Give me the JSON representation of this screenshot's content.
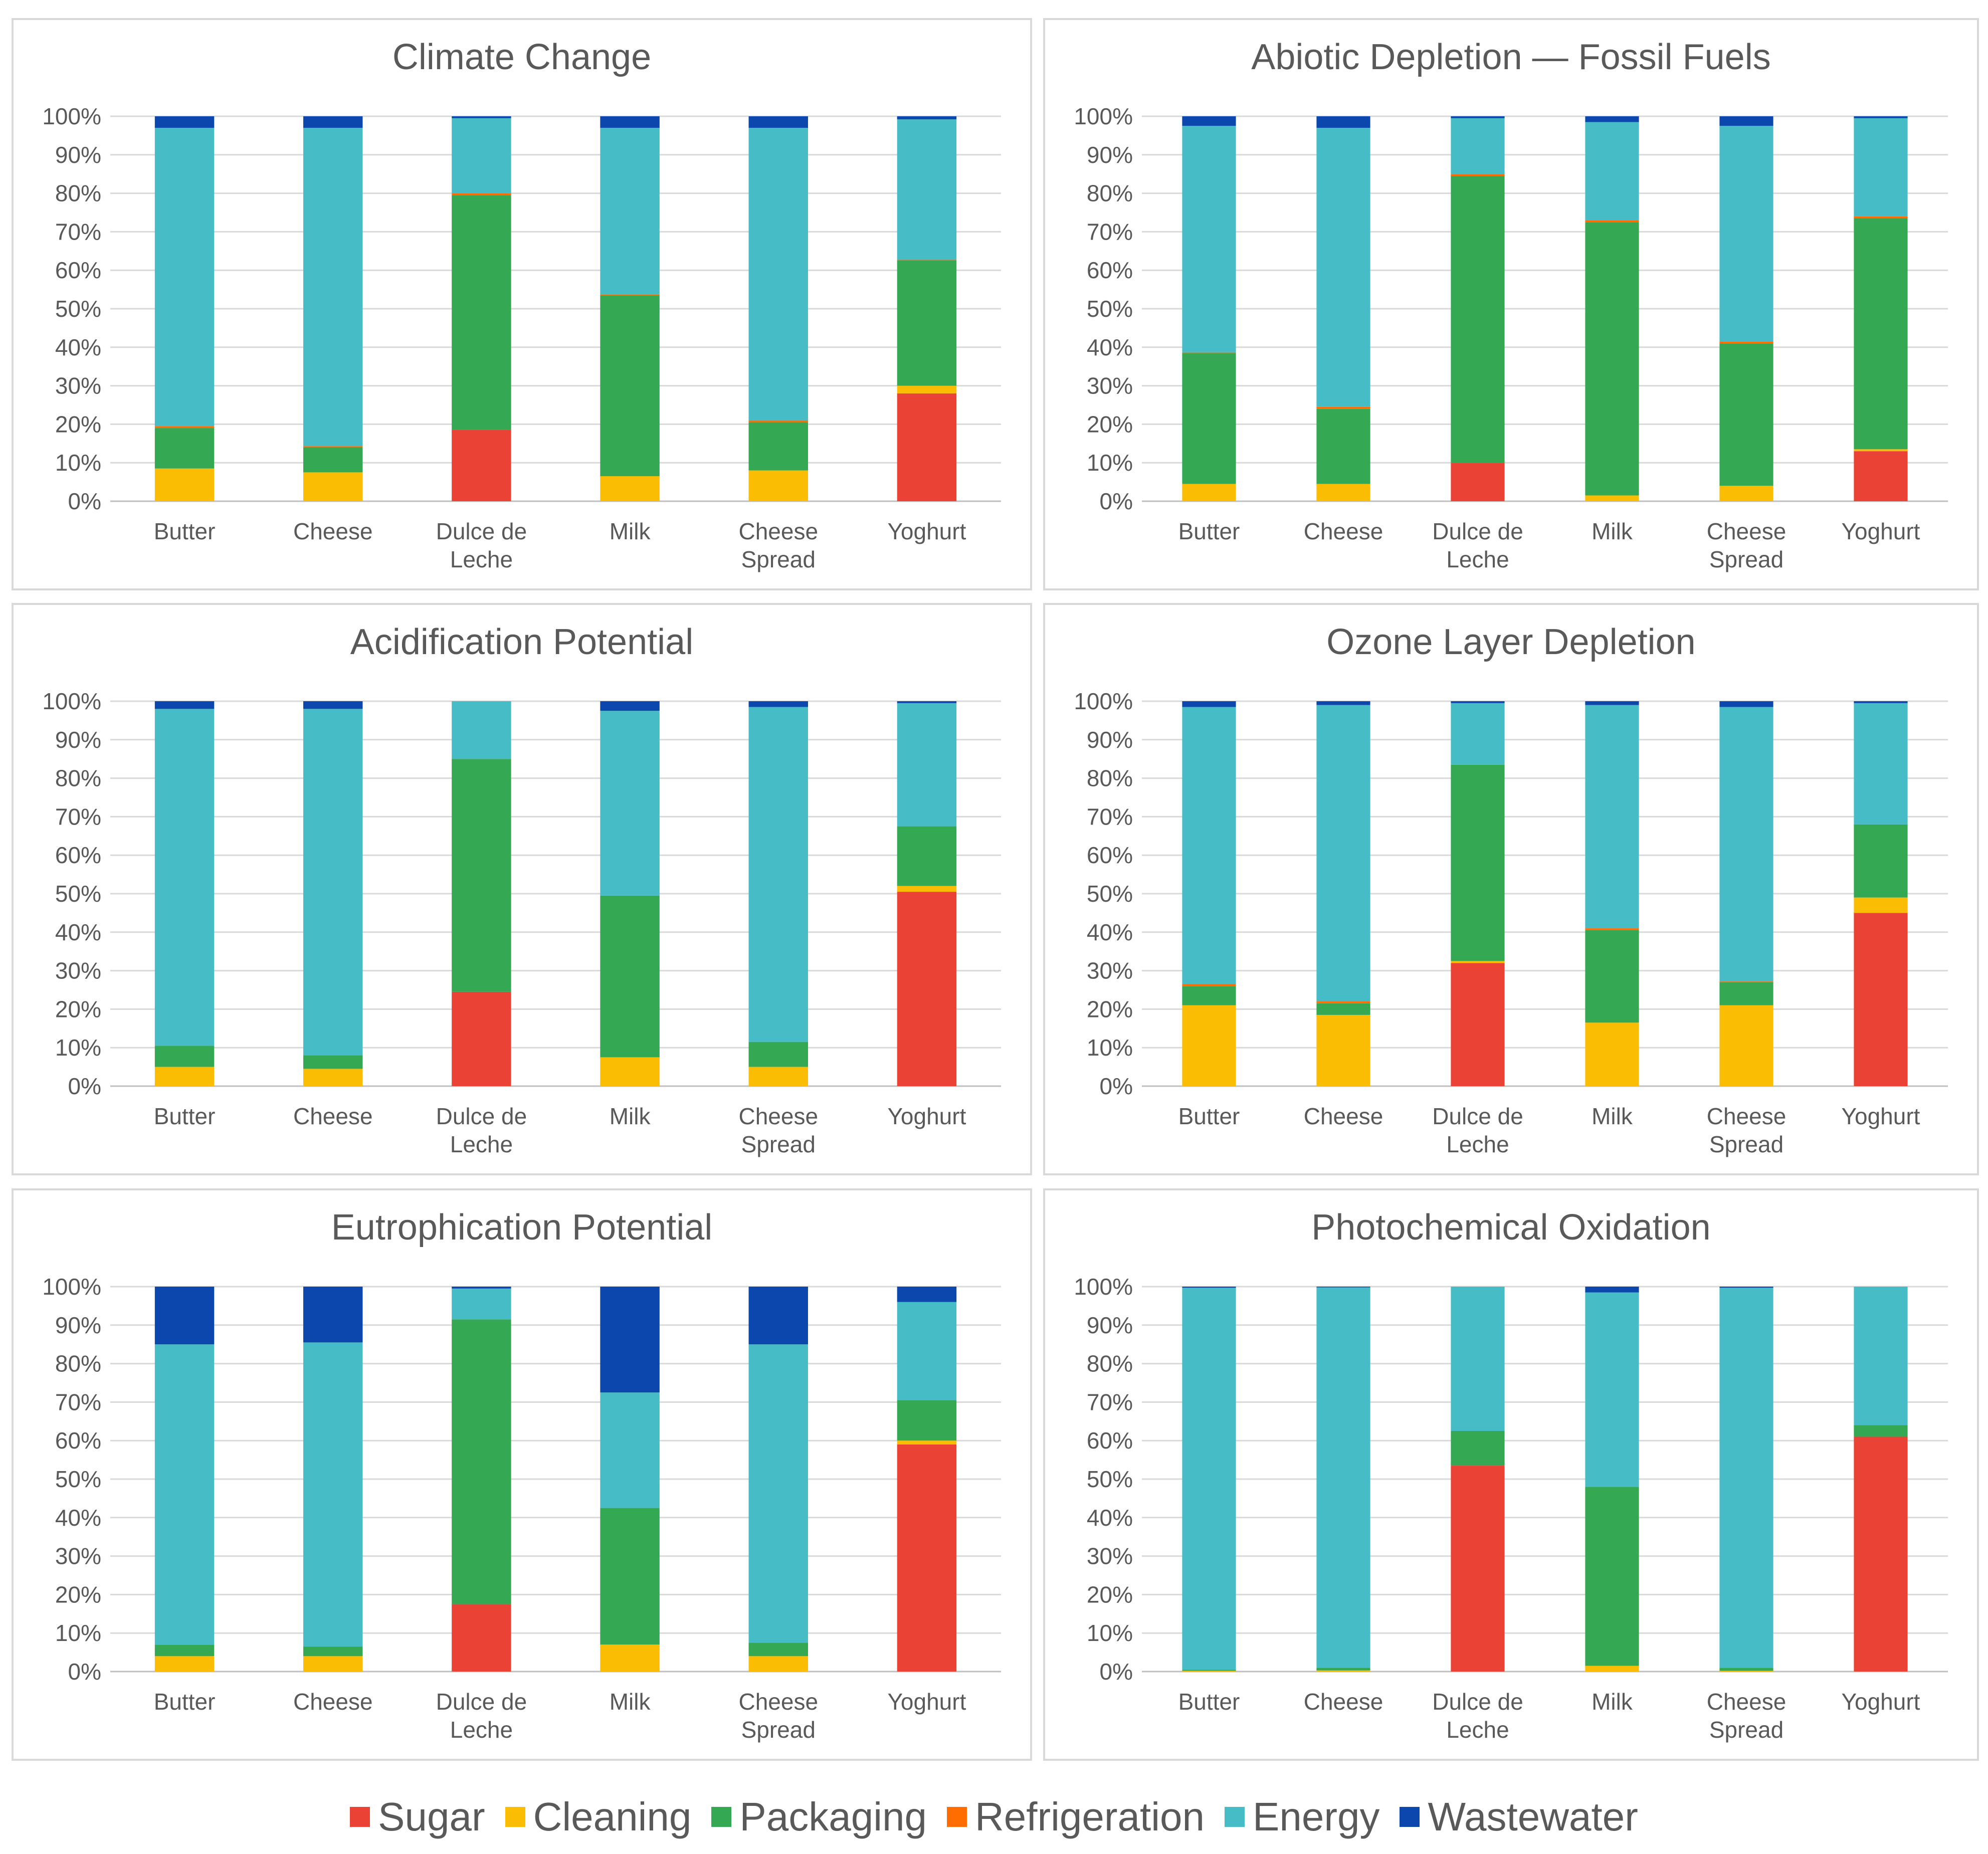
{
  "colors": {
    "Sugar": "#ea4335",
    "Cleaning": "#fbbc04",
    "Packaging": "#34a853",
    "Refrigeration": "#ff6d01",
    "Energy": "#46bdc6",
    "Wastewater": "#0b47ad"
  },
  "legend": [
    {
      "key": "Sugar",
      "label": "Sugar",
      "color": "#ea4335"
    },
    {
      "key": "Cleaning",
      "label": "Cleaning",
      "color": "#fbbc04"
    },
    {
      "key": "Packaging",
      "label": "Packaging",
      "color": "#34a853"
    },
    {
      "key": "Refrigeration",
      "label": "Refrigeration",
      "color": "#ff6d01"
    },
    {
      "key": "Energy",
      "label": "Energy",
      "color": "#46bdc6"
    },
    {
      "key": "Wastewater",
      "label": "Wastewater",
      "color": "#0b47ad"
    }
  ],
  "chart_data": [
    {
      "type": "bar",
      "stacked": true,
      "title": "Climate Change",
      "categories": [
        "Butter",
        "Cheese",
        "Dulce de Leche",
        "Milk",
        "Cheese Spread",
        "Yoghurt"
      ],
      "ylim": [
        0,
        100
      ],
      "yticks": [
        "0%",
        "10%",
        "20%",
        "30%",
        "40%",
        "50%",
        "60%",
        "70%",
        "80%",
        "90%",
        "100%"
      ],
      "series": [
        {
          "name": "Sugar",
          "values": [
            0,
            0,
            18.5,
            0,
            0,
            28
          ]
        },
        {
          "name": "Cleaning",
          "values": [
            8.5,
            7.5,
            0,
            6.5,
            8,
            2
          ]
        },
        {
          "name": "Packaging",
          "values": [
            10.5,
            6.5,
            61,
            47,
            12.5,
            32.5
          ]
        },
        {
          "name": "Refrigeration",
          "values": [
            0.5,
            0.3,
            0.5,
            0.2,
            0.5,
            0.2
          ]
        },
        {
          "name": "Energy",
          "values": [
            77.5,
            82.7,
            19.5,
            43.3,
            76,
            36.5
          ]
        },
        {
          "name": "Wastewater",
          "values": [
            3,
            3,
            0.5,
            3,
            3,
            0.8
          ]
        }
      ]
    },
    {
      "type": "bar",
      "stacked": true,
      "title": "Abiotic Depletion — Fossil Fuels",
      "categories": [
        "Butter",
        "Cheese",
        "Dulce de Leche",
        "Milk",
        "Cheese Spread",
        "Yoghurt"
      ],
      "ylim": [
        0,
        100
      ],
      "yticks": [
        "0%",
        "10%",
        "20%",
        "30%",
        "40%",
        "50%",
        "60%",
        "70%",
        "80%",
        "90%",
        "100%"
      ],
      "series": [
        {
          "name": "Sugar",
          "values": [
            0,
            0,
            10,
            0,
            0,
            13
          ]
        },
        {
          "name": "Cleaning",
          "values": [
            4.5,
            4.5,
            0,
            1.5,
            4,
            0.5
          ]
        },
        {
          "name": "Packaging",
          "values": [
            34,
            19.5,
            74.5,
            71,
            37,
            60
          ]
        },
        {
          "name": "Refrigeration",
          "values": [
            0.2,
            0.5,
            0.5,
            0.5,
            0.5,
            0.5
          ]
        },
        {
          "name": "Energy",
          "values": [
            58.8,
            72.5,
            14.5,
            25.5,
            56,
            25.5
          ]
        },
        {
          "name": "Wastewater",
          "values": [
            2.5,
            3,
            0.5,
            1.5,
            2.5,
            0.5
          ]
        }
      ]
    },
    {
      "type": "bar",
      "stacked": true,
      "title": "Acidification Potential",
      "categories": [
        "Butter",
        "Cheese",
        "Dulce de Leche",
        "Milk",
        "Cheese Spread",
        "Yoghurt"
      ],
      "ylim": [
        0,
        100
      ],
      "yticks": [
        "0%",
        "10%",
        "20%",
        "30%",
        "40%",
        "50%",
        "60%",
        "70%",
        "80%",
        "90%",
        "100%"
      ],
      "series": [
        {
          "name": "Sugar",
          "values": [
            0,
            0,
            24.5,
            0,
            0,
            50.5
          ]
        },
        {
          "name": "Cleaning",
          "values": [
            5,
            4.5,
            0,
            7.5,
            5,
            1.5
          ]
        },
        {
          "name": "Packaging",
          "values": [
            5.5,
            3.5,
            60.5,
            42,
            6.5,
            15.5
          ]
        },
        {
          "name": "Refrigeration",
          "values": [
            0,
            0,
            0,
            0,
            0,
            0
          ]
        },
        {
          "name": "Energy",
          "values": [
            87.5,
            90,
            15,
            48,
            87,
            32
          ]
        },
        {
          "name": "Wastewater",
          "values": [
            2,
            2,
            0,
            2.5,
            1.5,
            0.5
          ]
        }
      ]
    },
    {
      "type": "bar",
      "stacked": true,
      "title": "Ozone Layer Depletion",
      "categories": [
        "Butter",
        "Cheese",
        "Dulce de Leche",
        "Milk",
        "Cheese Spread",
        "Yoghurt"
      ],
      "ylim": [
        0,
        100
      ],
      "yticks": [
        "0%",
        "10%",
        "20%",
        "30%",
        "40%",
        "50%",
        "60%",
        "70%",
        "80%",
        "90%",
        "100%"
      ],
      "series": [
        {
          "name": "Sugar",
          "values": [
            0,
            0,
            32,
            0,
            0,
            45
          ]
        },
        {
          "name": "Cleaning",
          "values": [
            21,
            18.5,
            0.5,
            16.5,
            21,
            4
          ]
        },
        {
          "name": "Packaging",
          "values": [
            5,
            3,
            51,
            24,
            6,
            19
          ]
        },
        {
          "name": "Refrigeration",
          "values": [
            0.5,
            0.5,
            0,
            0.5,
            0.2,
            0
          ]
        },
        {
          "name": "Energy",
          "values": [
            72,
            77,
            16,
            58,
            71.3,
            31.5
          ]
        },
        {
          "name": "Wastewater",
          "values": [
            1.5,
            1,
            0.5,
            1,
            1.5,
            0.5
          ]
        }
      ]
    },
    {
      "type": "bar",
      "stacked": true,
      "title": "Eutrophication Potential",
      "categories": [
        "Butter",
        "Cheese",
        "Dulce de Leche",
        "Milk",
        "Cheese Spread",
        "Yoghurt"
      ],
      "ylim": [
        0,
        100
      ],
      "yticks": [
        "0%",
        "10%",
        "20%",
        "30%",
        "40%",
        "50%",
        "60%",
        "70%",
        "80%",
        "90%",
        "100%"
      ],
      "series": [
        {
          "name": "Sugar",
          "values": [
            0,
            0,
            17.5,
            0,
            0,
            59
          ]
        },
        {
          "name": "Cleaning",
          "values": [
            4,
            4,
            0,
            7,
            4,
            1
          ]
        },
        {
          "name": "Packaging",
          "values": [
            3,
            2.5,
            74,
            35.5,
            3.5,
            10.5
          ]
        },
        {
          "name": "Refrigeration",
          "values": [
            0,
            0,
            0,
            0,
            0,
            0
          ]
        },
        {
          "name": "Energy",
          "values": [
            78,
            79,
            8,
            30,
            77.5,
            25.5
          ]
        },
        {
          "name": "Wastewater",
          "values": [
            15,
            14.5,
            0.5,
            27.5,
            15,
            4
          ]
        }
      ]
    },
    {
      "type": "bar",
      "stacked": true,
      "title": "Photochemical Oxidation",
      "categories": [
        "Butter",
        "Cheese",
        "Dulce de Leche",
        "Milk",
        "Cheese Spread",
        "Yoghurt"
      ],
      "ylim": [
        0,
        100
      ],
      "yticks": [
        "0%",
        "10%",
        "20%",
        "30%",
        "40%",
        "50%",
        "60%",
        "70%",
        "80%",
        "90%",
        "100%"
      ],
      "series": [
        {
          "name": "Sugar",
          "values": [
            0,
            0,
            53.5,
            0,
            0,
            61
          ]
        },
        {
          "name": "Cleaning",
          "values": [
            0.2,
            0.3,
            0,
            1.5,
            0.2,
            0
          ]
        },
        {
          "name": "Packaging",
          "values": [
            0.3,
            0.7,
            9,
            46.5,
            0.8,
            3
          ]
        },
        {
          "name": "Refrigeration",
          "values": [
            0,
            0,
            0,
            0,
            0,
            0
          ]
        },
        {
          "name": "Energy",
          "values": [
            99.2,
            98.8,
            37.5,
            50.5,
            98.7,
            36
          ]
        },
        {
          "name": "Wastewater",
          "values": [
            0.3,
            0.2,
            0,
            1.5,
            0.3,
            0
          ]
        }
      ]
    }
  ]
}
